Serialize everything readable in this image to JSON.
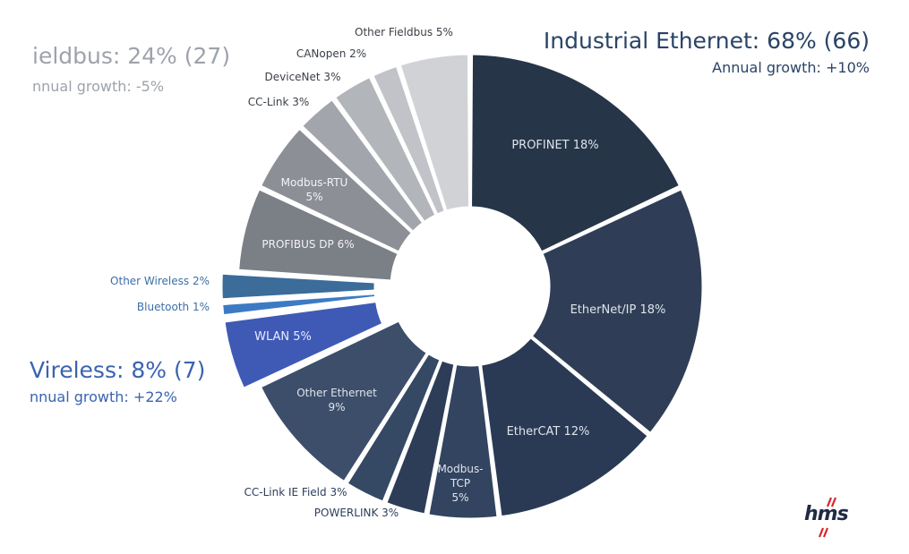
{
  "chart_data": {
    "type": "pie",
    "variant": "donut",
    "categories": [
      "PROFINET",
      "EtherNet/IP",
      "EtherCAT",
      "Modbus-TCP",
      "POWERLINK",
      "CC-Link IE Field",
      "Other Ethernet",
      "WLAN",
      "Bluetooth",
      "Other Wireless",
      "PROFIBUS DP",
      "Modbus-RTU",
      "CC-Link",
      "DeviceNet",
      "CANopen",
      "Other Fieldbus"
    ],
    "values": [
      18,
      18,
      12,
      5,
      3,
      3,
      9,
      5,
      1,
      2,
      6,
      5,
      3,
      3,
      2,
      5
    ],
    "slice_labels": [
      "PROFINET 18%",
      "EtherNet/IP 18%",
      "EtherCAT 12%",
      "Modbus-TCP 5%",
      "POWERLINK 3%",
      "CC-Link IE Field 3%",
      "Other Ethernet 9%",
      "WLAN 5%",
      "Bluetooth 1%",
      "Other Wireless 2%",
      "PROFIBUS DP 6%",
      "Modbus-RTU 5%",
      "CC-Link 3%",
      "DeviceNet 3%",
      "CANopen 2%",
      "Other Fieldbus 5%"
    ],
    "colors": [
      "#263548",
      "#2f3e56",
      "#2a3a54",
      "#32445f",
      "#2d3d58",
      "#354864",
      "#3c4e6a",
      "#3f5ab5",
      "#3c7bc4",
      "#3b6c9a",
      "#7b7f86",
      "#8c9096",
      "#a2a5ab",
      "#b2b5ba",
      "#c1c3c8",
      "#d0d2d5"
    ],
    "groups": [
      {
        "name": "Industrial Ethernet",
        "title": "Industrial Ethernet: 68% (66)",
        "growth": "Annual growth: +10%",
        "color": "#2a4466"
      },
      {
        "name": "Fieldbus",
        "title": "ieldbus: 24% (27)",
        "growth": "nnual growth: -5%",
        "color": "#9ea3aa"
      },
      {
        "name": "Wireless",
        "title": "Vireless: 8% (7)",
        "growth": "nnual growth: +22%",
        "color": "#3a63b0"
      }
    ],
    "logo": "hms"
  }
}
